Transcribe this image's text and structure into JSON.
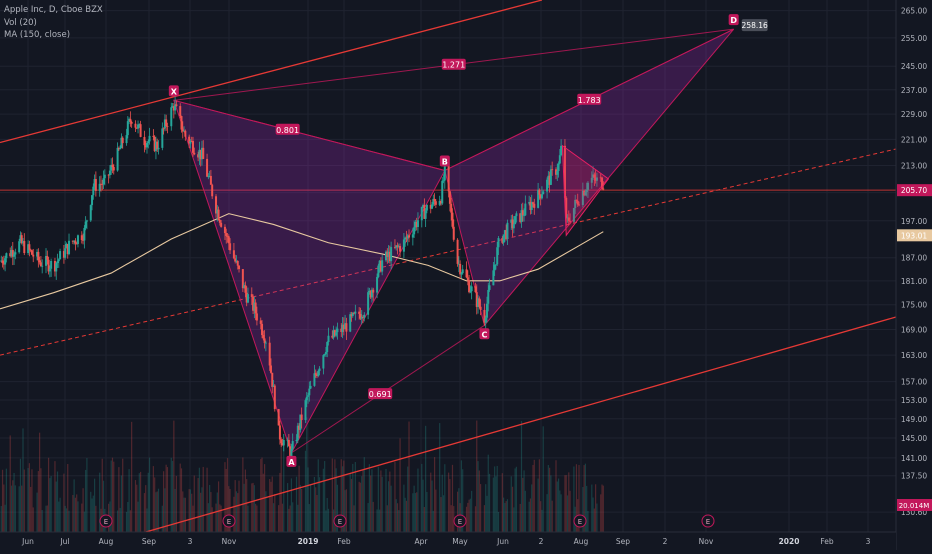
{
  "legend": {
    "symbol_line": "Apple Inc, D, Cboe BZX",
    "vol_line": "Vol (20)",
    "ma_line": "MA (150, close)"
  },
  "colors": {
    "background": "#131722",
    "grid": "#1f2330",
    "up": "#26a69a",
    "down": "#ef5350",
    "pattern_fill": "#9c27b0",
    "pattern_line": "#c2185b",
    "channel": "#e53935",
    "ma": "#e8c9a0",
    "axis_text": "#b2b5be"
  },
  "price_axis": {
    "ticks": [
      "130.60",
      "137.50",
      "141.00",
      "145.00",
      "149.00",
      "153.00",
      "157.00",
      "163.00",
      "169.00",
      "175.00",
      "181.00",
      "187.00",
      "197.00",
      "205.00",
      "213.00",
      "221.00",
      "229.00",
      "237.00",
      "245.00",
      "255.00",
      "265.00"
    ],
    "last_price_label": "205.70",
    "ma_label": "193.01",
    "vol_label": "20.014M",
    "target_label": "258.16"
  },
  "time_axis": {
    "ticks": [
      "Jun",
      "Jul",
      "Aug",
      "Sep",
      "3",
      "Nov",
      "2019",
      "Feb",
      "Apr",
      "May",
      "Jun",
      "2",
      "Aug",
      "Sep",
      "2",
      "Nov",
      "2020",
      "Feb",
      "3"
    ]
  },
  "pattern": {
    "points": [
      {
        "name": "X",
        "date": "2018-10-03",
        "price": 233.5
      },
      {
        "name": "A",
        "date": "2019-01-03",
        "price": 142.0
      },
      {
        "name": "B",
        "date": "2019-05-03",
        "price": 211.5
      },
      {
        "name": "C",
        "date": "2019-06-03",
        "price": 170.0
      },
      {
        "name": "D",
        "date": "2019-12-15",
        "price": 258.16
      }
    ],
    "ratios": [
      "0.801",
      "0.691",
      "1.271",
      "1.783"
    ]
  },
  "earnings_markers": [
    "E",
    "E",
    "E",
    "E",
    "E",
    "E"
  ],
  "chart_data": {
    "type": "candlestick",
    "title": "Apple Inc, D, Cboe BZX",
    "xlabel": "",
    "ylabel": "",
    "x_range": [
      "2018-05-20",
      "2020-04-20"
    ],
    "y_range": [
      127,
      269
    ],
    "y_scale": "log",
    "series": [
      {
        "name": "price",
        "path": [
          [
            "2018-05-20",
            186
          ],
          [
            "2018-06-05",
            191
          ],
          [
            "2018-06-20",
            186
          ],
          [
            "2018-07-01",
            185
          ],
          [
            "2018-07-15",
            191
          ],
          [
            "2018-07-25",
            194
          ],
          [
            "2018-08-01",
            207
          ],
          [
            "2018-08-10",
            208
          ],
          [
            "2018-08-20",
            216
          ],
          [
            "2018-08-31",
            228
          ],
          [
            "2018-09-10",
            221
          ],
          [
            "2018-09-20",
            219
          ],
          [
            "2018-10-03",
            232
          ],
          [
            "2018-10-12",
            222
          ],
          [
            "2018-10-25",
            216
          ],
          [
            "2018-11-05",
            201
          ],
          [
            "2018-11-15",
            191
          ],
          [
            "2018-11-28",
            178
          ],
          [
            "2018-12-05",
            174
          ],
          [
            "2018-12-15",
            166
          ],
          [
            "2018-12-24",
            146
          ],
          [
            "2019-01-03",
            142
          ],
          [
            "2019-01-15",
            153
          ],
          [
            "2019-01-31",
            166
          ],
          [
            "2019-02-15",
            170
          ],
          [
            "2019-03-01",
            174
          ],
          [
            "2019-03-15",
            186
          ],
          [
            "2019-04-01",
            191
          ],
          [
            "2019-04-15",
            199
          ],
          [
            "2019-04-30",
            204
          ],
          [
            "2019-05-03",
            211
          ],
          [
            "2019-05-13",
            186
          ],
          [
            "2019-05-25",
            178
          ],
          [
            "2019-06-03",
            172
          ],
          [
            "2019-06-15",
            192
          ],
          [
            "2019-06-30",
            198
          ],
          [
            "2019-07-15",
            204
          ],
          [
            "2019-07-31",
            213
          ],
          [
            "2019-08-03",
            220
          ],
          [
            "2019-08-06",
            196
          ],
          [
            "2019-08-15",
            203
          ],
          [
            "2019-08-25",
            209
          ],
          [
            "2019-09-04",
            208
          ]
        ]
      },
      {
        "name": "MA (150, close)",
        "points": [
          [
            "2018-05-20",
            174
          ],
          [
            "2018-07-01",
            178
          ],
          [
            "2018-08-15",
            183
          ],
          [
            "2018-10-01",
            192
          ],
          [
            "2018-11-15",
            199
          ],
          [
            "2018-12-20",
            196
          ],
          [
            "2019-02-01",
            191
          ],
          [
            "2019-03-15",
            188
          ],
          [
            "2019-04-20",
            185
          ],
          [
            "2019-05-20",
            181
          ],
          [
            "2019-06-15",
            181
          ],
          [
            "2019-07-15",
            184
          ],
          [
            "2019-08-15",
            190
          ],
          [
            "2019-09-04",
            194
          ]
        ]
      }
    ],
    "channel_lines": [
      {
        "name": "upper",
        "from": [
          "2018-05-20",
          220
        ],
        "to": [
          "2019-07-18",
          269
        ]
      },
      {
        "name": "lower",
        "from": [
          "2018-09-11",
          127
        ],
        "to": [
          "2020-04-20",
          172
        ]
      },
      {
        "name": "mid-dashed",
        "from": [
          "2018-05-20",
          163
        ],
        "to": [
          "2020-04-20",
          218
        ]
      }
    ]
  }
}
